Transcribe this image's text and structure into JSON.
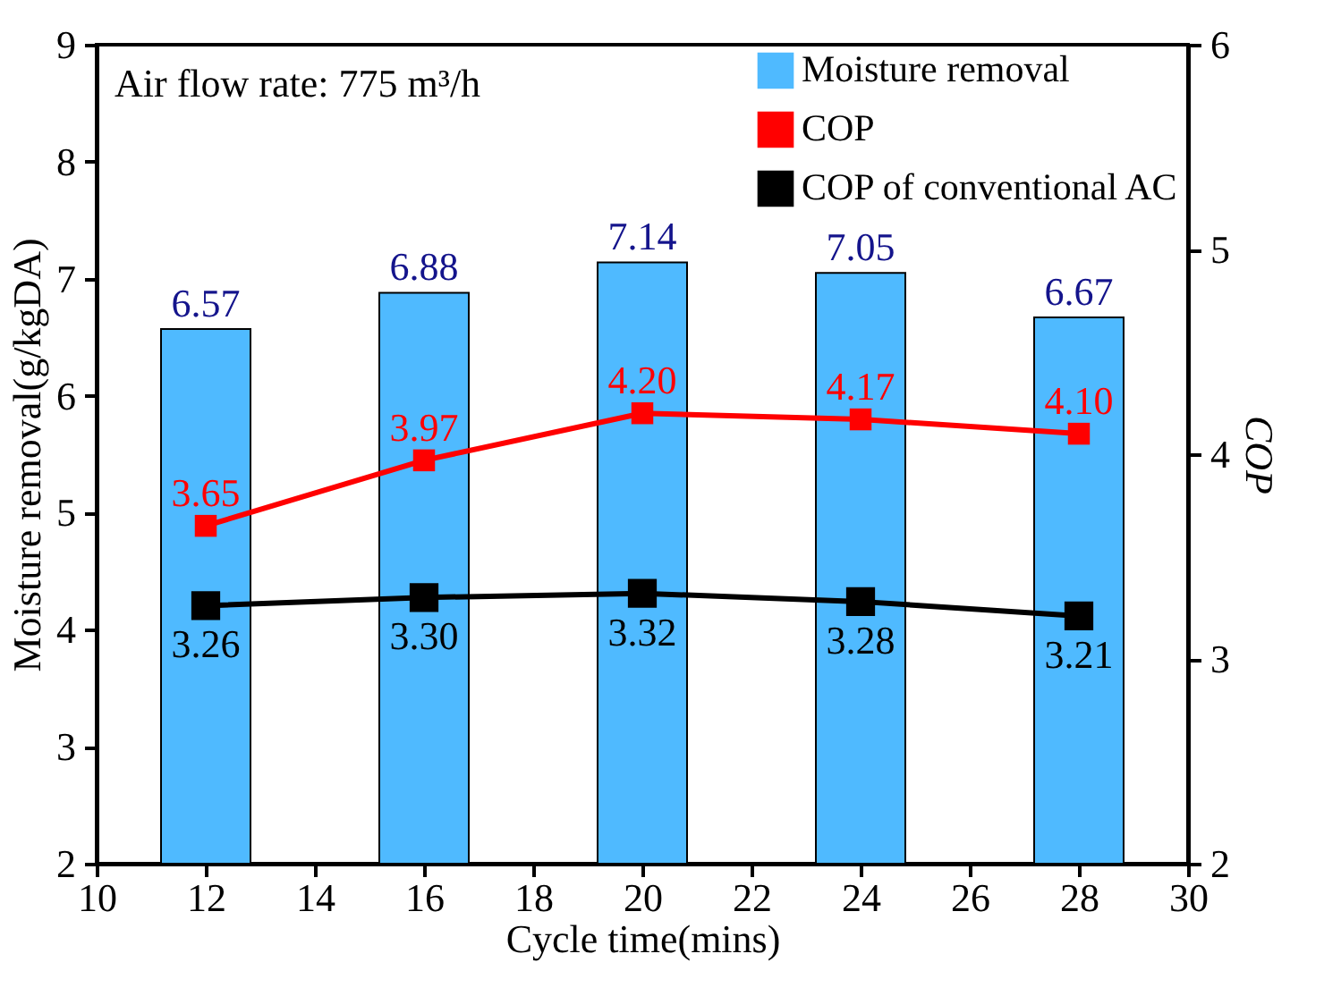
{
  "chart_data": {
    "type": "bar",
    "xlabel": "Cycle time(mins)",
    "ylabel": "Moisture removal(g/kgDA)",
    "y2label": "COP",
    "annotations": [
      "Air flow rate: 775 m³/h"
    ],
    "x": [
      12,
      16,
      20,
      24,
      28
    ],
    "series": [
      {
        "name": "Moisture removal",
        "color": "#4fbaff",
        "values": [
          6.57,
          6.88,
          7.14,
          7.05,
          6.67
        ],
        "value_labels": [
          "6.57",
          "6.88",
          "7.14",
          "7.05",
          "6.67"
        ]
      },
      {
        "name": "COP",
        "type": "line",
        "axis": "y2",
        "color": "#ff0000",
        "values": [
          3.65,
          3.97,
          4.2,
          4.17,
          4.1
        ],
        "value_labels": [
          "3.65",
          "3.97",
          "4.20",
          "4.17",
          "4.10"
        ]
      },
      {
        "name": "COP of conventional AC",
        "type": "line",
        "axis": "y2",
        "color": "#000000",
        "values": [
          3.26,
          3.3,
          3.32,
          3.28,
          3.21
        ],
        "value_labels": [
          "3.26",
          "3.30",
          "3.32",
          "3.28",
          "3.21"
        ]
      }
    ],
    "xlim": [
      10,
      30
    ],
    "xticks": [
      10,
      12,
      14,
      16,
      18,
      20,
      22,
      24,
      26,
      28,
      30
    ],
    "ylim": [
      2,
      9
    ],
    "yticks": [
      2,
      3,
      4,
      5,
      6,
      7,
      8,
      9
    ],
    "y2lim": [
      2,
      6
    ],
    "y2ticks": [
      2,
      3,
      4,
      5,
      6
    ],
    "legend": "top right",
    "marker": "square",
    "line_style": "solid"
  }
}
